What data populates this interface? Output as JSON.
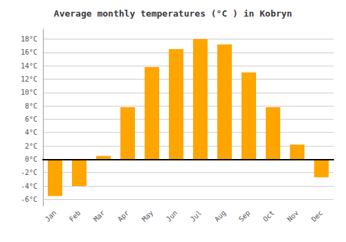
{
  "chart_data": {
    "type": "bar",
    "title": "Average monthly temperatures (°C ) in Kobryn",
    "categories": [
      "Jan",
      "Feb",
      "Mar",
      "Apr",
      "May",
      "Jun",
      "Jul",
      "Aug",
      "Sep",
      "Oct",
      "Nov",
      "Dec"
    ],
    "values": [
      -5.5,
      -4.0,
      0.5,
      7.8,
      13.8,
      16.5,
      18.0,
      17.2,
      13.0,
      7.8,
      2.2,
      -2.7
    ],
    "color": "#FFA500",
    "ylim": [
      -7,
      19.5
    ],
    "yticks": [
      {
        "value": -6,
        "label": "-6°C"
      },
      {
        "value": -4,
        "label": "-4°C"
      },
      {
        "value": -2,
        "label": "-2°C"
      },
      {
        "value": 0,
        "label": "0°C"
      },
      {
        "value": 2,
        "label": "2°C"
      },
      {
        "value": 4,
        "label": "4°C"
      },
      {
        "value": 6,
        "label": "6°C"
      },
      {
        "value": 8,
        "label": "8°C"
      },
      {
        "value": 10,
        "label": "10°C"
      },
      {
        "value": 12,
        "label": "12°C"
      },
      {
        "value": 14,
        "label": "14°C"
      },
      {
        "value": 16,
        "label": "16°C"
      },
      {
        "value": 18,
        "label": "18°C"
      }
    ],
    "grid": true
  }
}
